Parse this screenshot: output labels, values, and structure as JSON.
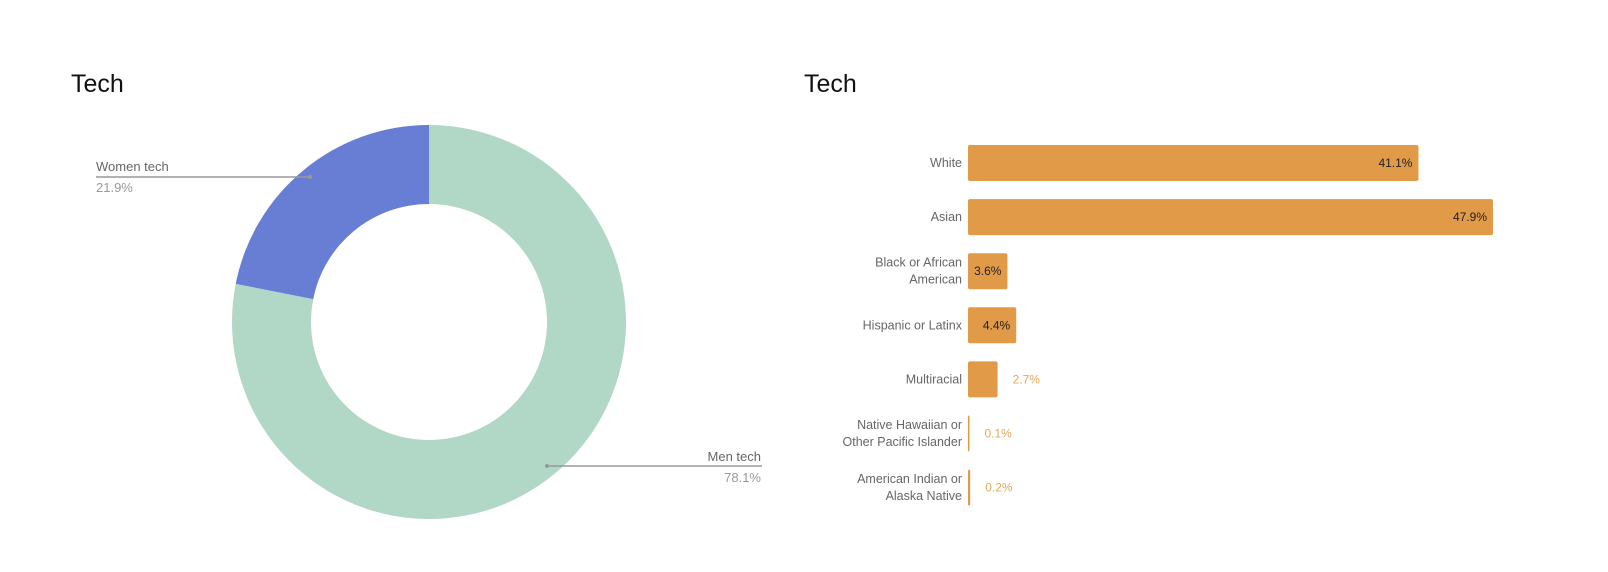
{
  "chart_data": [
    {
      "type": "pie",
      "donut": true,
      "title": "Tech",
      "labels": [
        "Men tech",
        "Women tech"
      ],
      "values": [
        78.1,
        21.9
      ],
      "value_labels": [
        "78.1%",
        "21.9%"
      ],
      "colors": [
        "#b1d8c6",
        "#687ed4"
      ],
      "legend": "none"
    },
    {
      "type": "bar",
      "orientation": "horizontal",
      "title": "Tech",
      "categories": [
        "White",
        "Asian",
        "Black or African American",
        "Hispanic or Latinx",
        "Multiracial",
        "Native Hawaiian or Other Pacific Islander",
        "American Indian or Alaska Native"
      ],
      "category_lines": [
        [
          "White"
        ],
        [
          "Asian"
        ],
        [
          "Black or African",
          "American"
        ],
        [
          "Hispanic or Latinx"
        ],
        [
          "Multiracial"
        ],
        [
          "Native Hawaiian or",
          "Other Pacific Islander"
        ],
        [
          "American Indian or",
          "Alaska Native"
        ]
      ],
      "values": [
        41.1,
        47.9,
        3.6,
        4.4,
        2.7,
        0.1,
        0.2
      ],
      "value_labels": [
        "41.1%",
        "47.9%",
        "3.6%",
        "4.4%",
        "2.7%",
        "0.1%",
        "0.2%"
      ],
      "color": "#e09a48",
      "grid": false,
      "legend": "none"
    }
  ]
}
